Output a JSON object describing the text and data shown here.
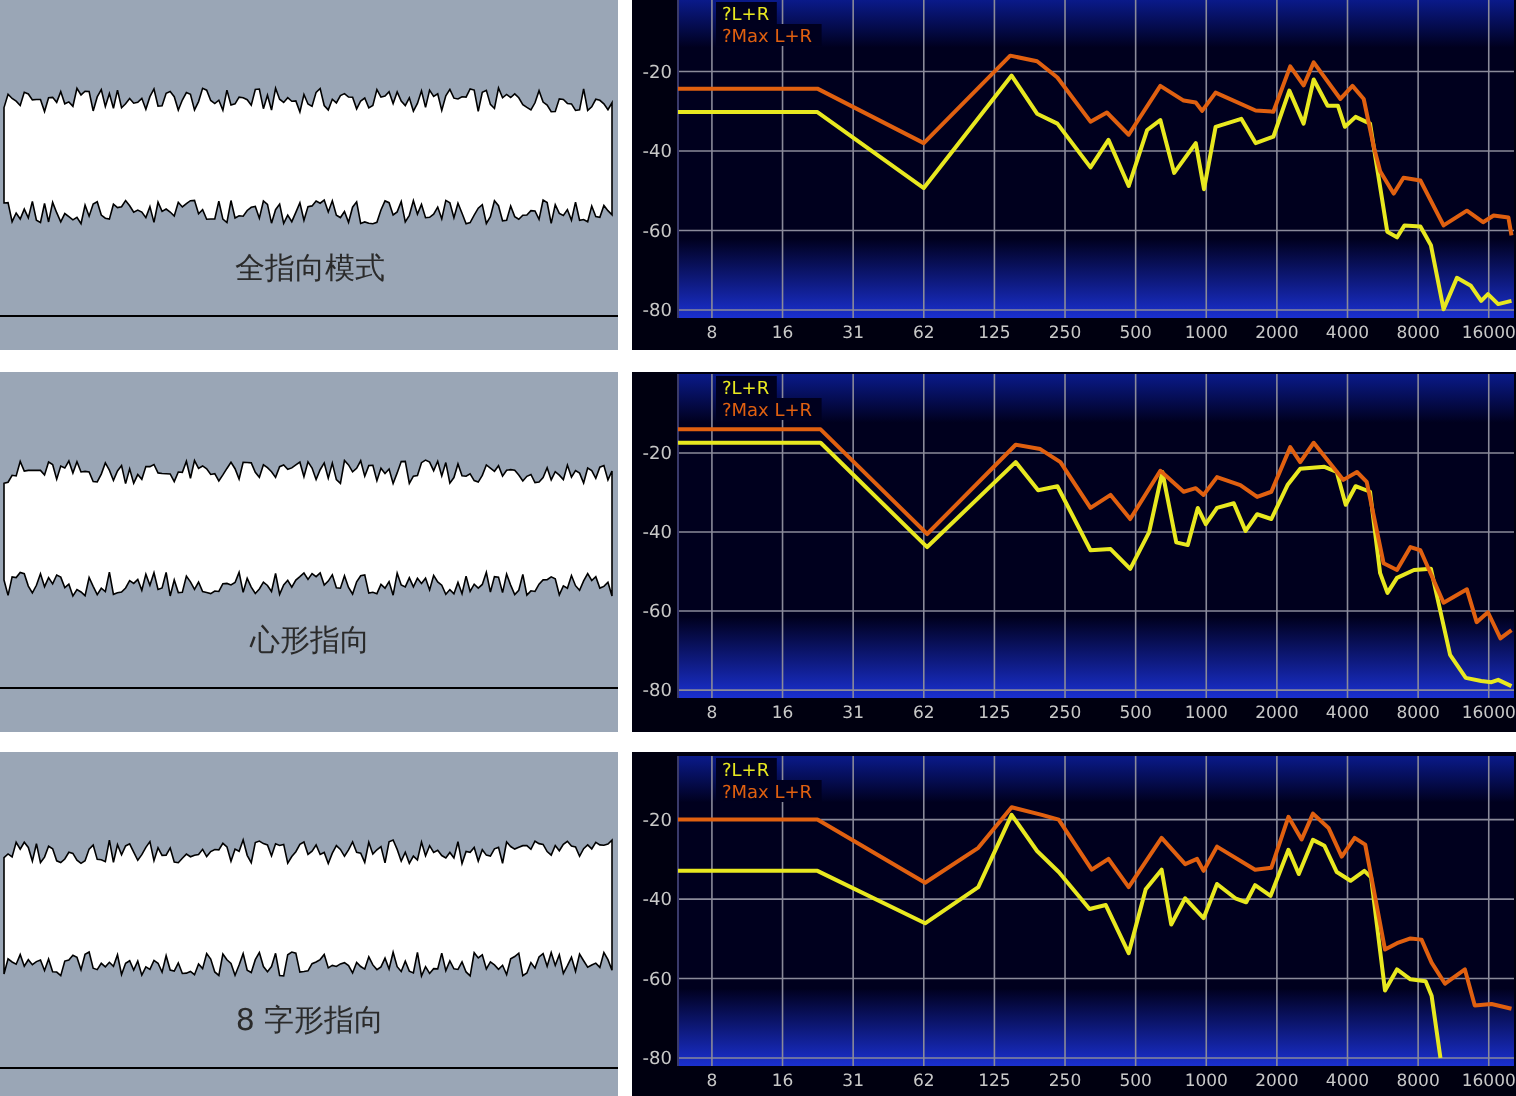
{
  "chart_data": [
    {
      "type": "other",
      "title": "全指向模式"
    },
    {
      "type": "line",
      "log": "x",
      "grid": true,
      "legend": "top left",
      "line_style": "solid",
      "xlim": [
        5.6,
        20500
      ],
      "ylim": [
        -82,
        -2
      ],
      "xticks": [
        {
          "value": 7.8125,
          "label": "8"
        },
        {
          "value": 15.625,
          "label": "16"
        },
        {
          "value": 31.25,
          "label": "31"
        },
        {
          "value": 62.5,
          "label": "62"
        },
        125,
        250,
        500,
        1000,
        2000,
        4000,
        8000,
        16000
      ],
      "yticks": [
        -20,
        -40,
        -60,
        -80
      ],
      "series": [
        {
          "name": "?L+R",
          "color": "#e8e820",
          "x": [
            5.6,
            22.0,
            62.5,
            148,
            190,
            232,
            321,
            383,
            467,
            560,
            637,
            730,
            902,
            978,
            1096,
            1410,
            1623,
            1932,
            2260,
            2600,
            2870,
            3290,
            3640,
            3900,
            4330,
            4990,
            5910,
            6500,
            7000,
            8180,
            9070,
            10270,
            11710,
            13430,
            14860,
            15870,
            17550,
            20000
          ],
          "values": [
            -30.2,
            -30.2,
            -49.3,
            -21,
            -30.6,
            -33.1,
            -44.1,
            -37.2,
            -48.8,
            -34.7,
            -32.2,
            -45.5,
            -38,
            -49.6,
            -33.9,
            -31.9,
            -38,
            -36.4,
            -24.8,
            -33.1,
            -22,
            -28.6,
            -28.6,
            -33.9,
            -31.4,
            -33.1,
            -60.3,
            -61.7,
            -58.7,
            -59,
            -63.7,
            -79.8,
            -71.9,
            -73.9,
            -77.7,
            -76,
            -78.5,
            -77.7
          ]
        },
        {
          "name": "?Max L+R",
          "color": "#e06010",
          "x": [
            5.6,
            22.0,
            62.5,
            146,
            190,
            232,
            321,
            377,
            467,
            637,
            801,
            902,
            960,
            1096,
            1623,
            1932,
            2280,
            2600,
            2870,
            3730,
            4200,
            4690,
            5170,
            5510,
            6290,
            6930,
            8180,
            10270,
            12910,
            15130,
            16780,
            19400,
            20000
          ],
          "values": [
            -24.3,
            -24.3,
            -38,
            -16,
            -17.4,
            -21.5,
            -32.6,
            -30.3,
            -35.9,
            -23.6,
            -27.3,
            -27.8,
            -29.9,
            -25.3,
            -29.8,
            -30.1,
            -18.7,
            -23.5,
            -17.7,
            -26.9,
            -23.6,
            -26.9,
            -38.8,
            -45.1,
            -50.7,
            -46.7,
            -47.4,
            -58.7,
            -55,
            -57.9,
            -56.2,
            -56.7,
            -61.2
          ]
        }
      ]
    },
    {
      "type": "other",
      "title": "心形指向"
    },
    {
      "type": "line",
      "log": "x",
      "grid": true,
      "legend": "top left",
      "line_style": "solid",
      "xlim": [
        5.6,
        20500
      ],
      "ylim": [
        -82,
        0
      ],
      "xticks": [
        {
          "value": 7.8125,
          "label": "8"
        },
        {
          "value": 15.625,
          "label": "16"
        },
        {
          "value": 31.25,
          "label": "31"
        },
        {
          "value": 62.5,
          "label": "62"
        },
        125,
        250,
        500,
        1000,
        2000,
        4000,
        8000,
        16000
      ],
      "yticks": [
        -20,
        -40,
        -60,
        -80
      ],
      "series": [
        {
          "name": "?L+R",
          "color": "#e8e820",
          "x": [
            5.6,
            22.7,
            64.6,
            154,
            192,
            232,
            321,
            391,
            474,
            571,
            650,
            745,
            834,
            920,
            995,
            1111,
            1310,
            1470,
            1648,
            1894,
            2220,
            2515,
            3190,
            3600,
            3930,
            4330,
            4990,
            5510,
            5920,
            6500,
            7680,
            9070,
            10950,
            12770,
            14860,
            16440,
            17550,
            20000
          ],
          "values": [
            -17.4,
            -17.4,
            -43.8,
            -22.3,
            -29.4,
            -28.4,
            -44.6,
            -44.3,
            -49.3,
            -40,
            -24.8,
            -42.6,
            -43.3,
            -33.9,
            -38,
            -33.9,
            -32.7,
            -39.7,
            -35.5,
            -36.7,
            -28.1,
            -24,
            -23.5,
            -24.8,
            -33.1,
            -28.4,
            -29.8,
            -50.4,
            -55.4,
            -51.6,
            -49.6,
            -49.3,
            -71.1,
            -76.9,
            -77.7,
            -78,
            -77.4,
            -79
          ]
        },
        {
          "name": "?Max L+R",
          "color": "#e06010",
          "x": [
            5.6,
            22.7,
            64.6,
            154,
            196,
            239,
            321,
            391,
            474,
            637,
            801,
            902,
            974,
            1111,
            1397,
            1648,
            1894,
            2280,
            2515,
            2870,
            3840,
            4390,
            4830,
            5700,
            6500,
            7420,
            8180,
            10270,
            12910,
            14210,
            15870,
            17940,
            20000
          ],
          "values": [
            -14,
            -14,
            -40.5,
            -17.9,
            -19,
            -22.3,
            -33.9,
            -30.6,
            -36.7,
            -24.5,
            -29.8,
            -28.9,
            -30.6,
            -26.1,
            -28.1,
            -31.1,
            -29.8,
            -18.5,
            -22.3,
            -17.4,
            -26.8,
            -24.8,
            -27.3,
            -47.9,
            -49.6,
            -43.8,
            -44.6,
            -57.9,
            -54.5,
            -62.8,
            -60.3,
            -66.9,
            -64.8
          ]
        }
      ]
    },
    {
      "type": "other",
      "title": "8 字形指向"
    },
    {
      "type": "line",
      "log": "x",
      "grid": true,
      "legend": "top left",
      "line_style": "solid",
      "xlim": [
        5.6,
        20500
      ],
      "ylim": [
        -82,
        -4
      ],
      "xticks": [
        {
          "value": 7.8125,
          "label": "8"
        },
        {
          "value": 15.625,
          "label": "16"
        },
        {
          "value": 31.25,
          "label": "31"
        },
        {
          "value": 62.5,
          "label": "62"
        },
        125,
        250,
        500,
        1000,
        2000,
        4000,
        8000,
        16000
      ],
      "yticks": [
        -20,
        -40,
        -60,
        -80
      ],
      "series": [
        {
          "name": "?L+R",
          "color": "#e8e820",
          "x": [
            5.6,
            22.0,
            63.3,
            106.7,
            148,
            190,
            235,
            318,
            373,
            467,
            552,
            645,
            709,
            813,
            974,
            1111,
            1330,
            1480,
            1615,
            1880,
            2240,
            2480,
            2850,
            3190,
            3600,
            4120,
            4720,
            5040,
            5780,
            6500,
            7420,
            8610,
            9130,
            9960
          ],
          "values": [
            -32.9,
            -32.9,
            -46.1,
            -37,
            -18.8,
            -27.9,
            -33.2,
            -42.5,
            -41.5,
            -53.6,
            -37.5,
            -32.6,
            -46.4,
            -39.8,
            -44.8,
            -36.2,
            -39.8,
            -40.8,
            -36.5,
            -39.2,
            -27.6,
            -33.7,
            -25.1,
            -26.6,
            -33.2,
            -35.4,
            -32.9,
            -34.5,
            -63,
            -57.7,
            -60.2,
            -60.7,
            -64.3,
            -80
          ]
        },
        {
          "name": "?Max L+R",
          "color": "#e06010",
          "x": [
            5.6,
            22.0,
            63.3,
            106.7,
            148,
            199,
            235,
            325,
            383,
            467,
            645,
            813,
            914,
            974,
            1111,
            1615,
            1894,
            2240,
            2550,
            2850,
            3320,
            3780,
            4290,
            4760,
            5780,
            6500,
            7420,
            8270,
            9130,
            10420,
            12660,
            13950,
            16440,
            20000
          ],
          "values": [
            -20,
            -20,
            -35.9,
            -27.1,
            -16.9,
            -18.8,
            -20,
            -32.6,
            -29.9,
            -37,
            -24.6,
            -31.2,
            -29.9,
            -32.9,
            -26.8,
            -32.6,
            -32.1,
            -19.3,
            -25,
            -18.5,
            -22.1,
            -29.3,
            -24.6,
            -26.3,
            -52.7,
            -51.1,
            -49.9,
            -50.2,
            -56,
            -61.3,
            -57.7,
            -66.8,
            -66.4,
            -67.6
          ]
        }
      ]
    }
  ]
}
